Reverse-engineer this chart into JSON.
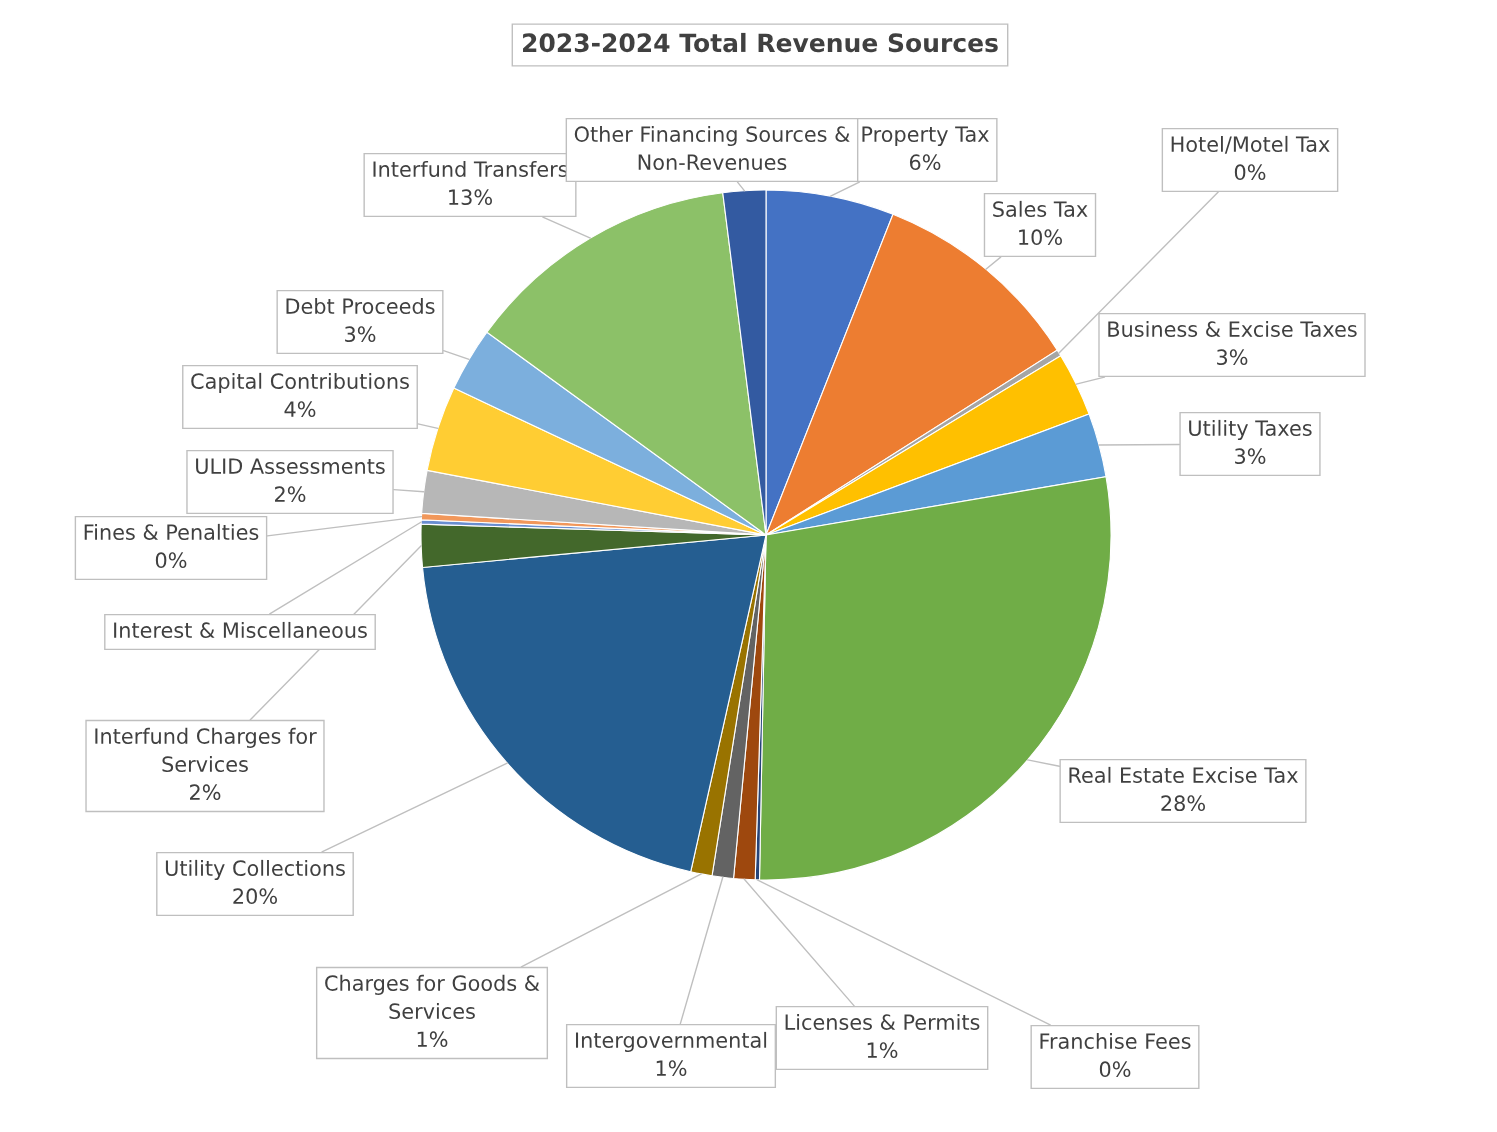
{
  "chart_data": {
    "type": "pie",
    "title": "2023-2024 Total Revenue Sources",
    "categories": [
      "Property Tax",
      "Sales Tax",
      "Hotel/Motel Tax",
      "Business & Excise Taxes",
      "Utility Taxes",
      "Real Estate Excise Tax",
      "Franchise Fees",
      "Licenses & Permits",
      "Intergovernmental",
      "Charges for Goods &\nServices",
      "Utility Collections",
      "Interfund Charges for\nServices",
      "Interest & Miscellaneous",
      "Fines & Penalties",
      "ULID Assessments",
      "Capital Contributions",
      "Debt Proceeds",
      "Interfund Transfers",
      "Other Financing Sources &\nNon-Revenues"
    ],
    "values": [
      6,
      10,
      0.3,
      3,
      3,
      28,
      0.2,
      1,
      1,
      1,
      20,
      2,
      0.2,
      0.3,
      2,
      4,
      3,
      13,
      2
    ],
    "value_labels": [
      "6%",
      "10%",
      "0%",
      "3%",
      "3%",
      "28%",
      "0%",
      "1%",
      "1%",
      "1%",
      "20%",
      "2%",
      null,
      "0%",
      "2%",
      "4%",
      "3%",
      "13%",
      null
    ],
    "colors": [
      "#4472c4",
      "#ed7d31",
      "#a5a5a5",
      "#ffc000",
      "#5b9bd5",
      "#70ad47",
      "#264478",
      "#9e480e",
      "#636363",
      "#997300",
      "#255e91",
      "#43682b",
      "#698ed0",
      "#f1975a",
      "#b7b7b7",
      "#ffcd33",
      "#7cafdd",
      "#8cc168",
      "#335aa1"
    ],
    "legend": false
  }
}
